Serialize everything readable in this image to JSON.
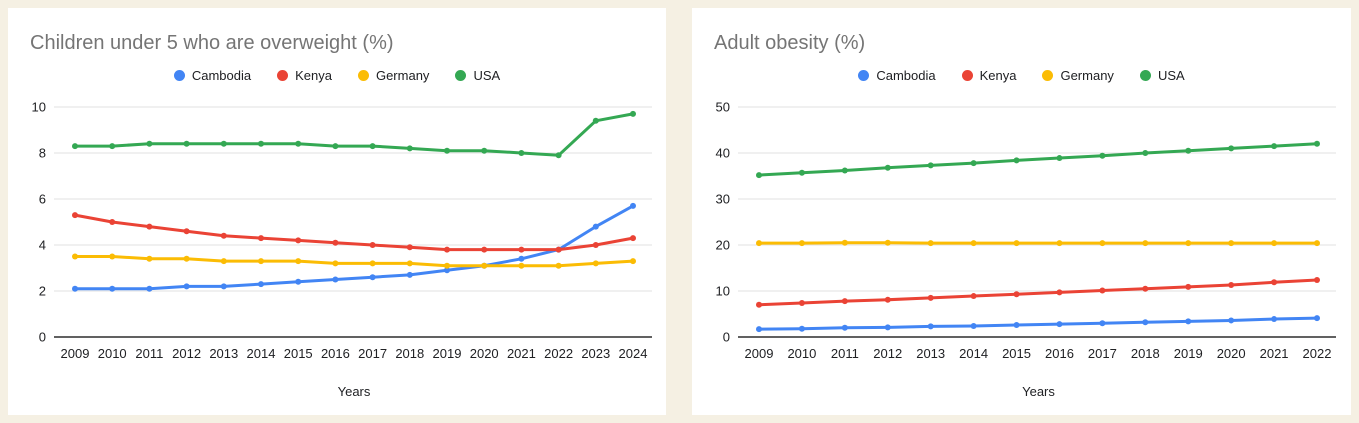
{
  "page": {
    "background_color": "#f5f0e3",
    "card_background_color": "#ffffff",
    "gridline_color": "#e2e2e2",
    "axis_line_color": "#616161",
    "title_color": "#757575",
    "text_color": "#202124"
  },
  "chart_data": [
    {
      "type": "line",
      "title": "Children under 5 who are overweight (%)",
      "xlabel": "Years",
      "legend_position": "top",
      "grid": true,
      "ylim": [
        0,
        10
      ],
      "yticks": [
        0,
        2,
        4,
        6,
        8,
        10
      ],
      "x": [
        "2009",
        "2010",
        "2011",
        "2012",
        "2013",
        "2014",
        "2015",
        "2016",
        "2017",
        "2018",
        "2019",
        "2020",
        "2021",
        "2022",
        "2023",
        "2024"
      ],
      "series": [
        {
          "name": "Cambodia",
          "color": "#4285F4",
          "values": [
            2.1,
            2.1,
            2.1,
            2.2,
            2.2,
            2.3,
            2.4,
            2.5,
            2.6,
            2.7,
            2.9,
            3.1,
            3.4,
            3.8,
            4.8,
            5.7
          ]
        },
        {
          "name": "Kenya",
          "color": "#EA4335",
          "values": [
            5.3,
            5.0,
            4.8,
            4.6,
            4.4,
            4.3,
            4.2,
            4.1,
            4.0,
            3.9,
            3.8,
            3.8,
            3.8,
            3.8,
            4.0,
            4.3
          ]
        },
        {
          "name": "Germany",
          "color": "#FBBC04",
          "values": [
            3.5,
            3.5,
            3.4,
            3.4,
            3.3,
            3.3,
            3.3,
            3.2,
            3.2,
            3.2,
            3.1,
            3.1,
            3.1,
            3.1,
            3.2,
            3.3
          ]
        },
        {
          "name": "USA",
          "color": "#34A853",
          "values": [
            8.3,
            8.3,
            8.4,
            8.4,
            8.4,
            8.4,
            8.4,
            8.3,
            8.3,
            8.2,
            8.1,
            8.1,
            8.0,
            7.9,
            9.4,
            9.7
          ]
        }
      ]
    },
    {
      "type": "line",
      "title": "Adult obesity (%)",
      "xlabel": "Years",
      "legend_position": "top",
      "grid": true,
      "ylim": [
        0,
        50
      ],
      "yticks": [
        0,
        10,
        20,
        30,
        40,
        50
      ],
      "x": [
        "2009",
        "2010",
        "2011",
        "2012",
        "2013",
        "2014",
        "2015",
        "2016",
        "2017",
        "2018",
        "2019",
        "2020",
        "2021",
        "2022"
      ],
      "series": [
        {
          "name": "Cambodia",
          "color": "#4285F4",
          "values": [
            1.7,
            1.8,
            2.0,
            2.1,
            2.3,
            2.4,
            2.6,
            2.8,
            3.0,
            3.2,
            3.4,
            3.6,
            3.9,
            4.1
          ]
        },
        {
          "name": "Kenya",
          "color": "#EA4335",
          "values": [
            7.0,
            7.4,
            7.8,
            8.1,
            8.5,
            8.9,
            9.3,
            9.7,
            10.1,
            10.5,
            10.9,
            11.3,
            11.9,
            12.4
          ]
        },
        {
          "name": "Germany",
          "color": "#FBBC04",
          "values": [
            20.4,
            20.4,
            20.5,
            20.5,
            20.4,
            20.4,
            20.4,
            20.4,
            20.4,
            20.4,
            20.4,
            20.4,
            20.4,
            20.4
          ]
        },
        {
          "name": "USA",
          "color": "#34A853",
          "values": [
            35.2,
            35.7,
            36.2,
            36.8,
            37.3,
            37.8,
            38.4,
            38.9,
            39.4,
            40.0,
            40.5,
            41.0,
            41.5,
            42.0
          ]
        }
      ]
    }
  ]
}
